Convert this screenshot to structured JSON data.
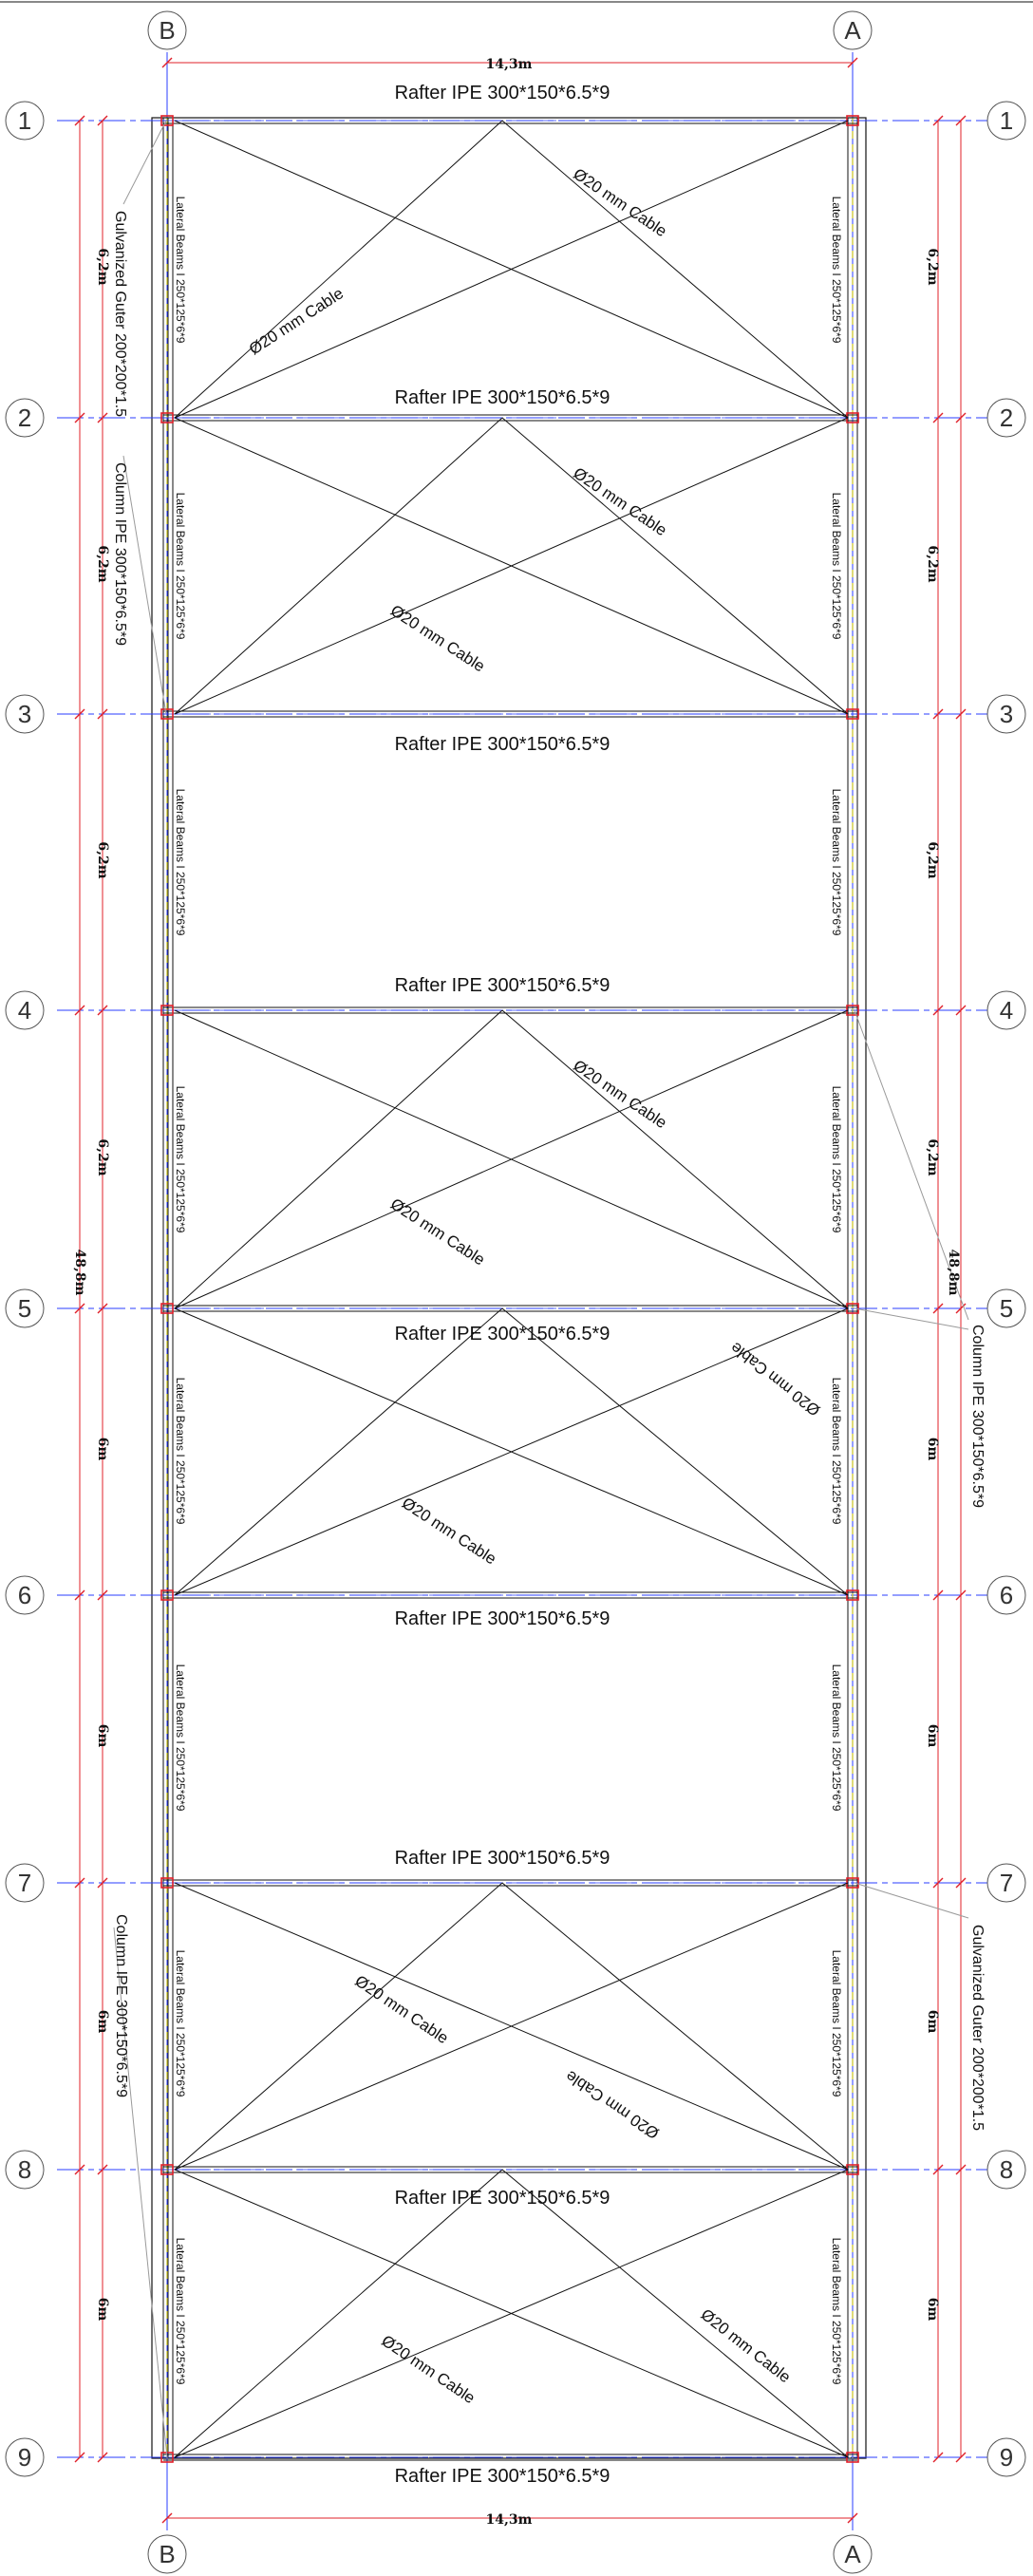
{
  "grid": {
    "columns": [
      "B",
      "A"
    ],
    "rows": [
      "1",
      "2",
      "3",
      "4",
      "5",
      "6",
      "7",
      "8",
      "9"
    ]
  },
  "dimensions": {
    "width": "14,3m",
    "total_length": "48,8m",
    "bays": [
      "6,2m",
      "6,2m",
      "6,2m",
      "6,2m",
      "6m",
      "6m",
      "6m",
      "6m"
    ]
  },
  "rafters": [
    "Rafter IPE 300*150*6.5*9",
    "Rafter IPE 300*150*6.5*9",
    "Rafter IPE 300*150*6.5*9",
    "Rafter IPE 300*150*6.5*9",
    "Rafter IPE 300*150*6.5*9",
    "Rafter IPE 300*150*6.5*9",
    "Rafter IPE 300*150*6.5*9",
    "Rafter IPE 300*150*6.5*9",
    "Rafter IPE 300*150*6.5*9"
  ],
  "lateral_beam": "Lateral Beams I 250*125*6*9",
  "cable": "Ø20 mm Cable",
  "callouts": {
    "gutter_left": "Gulvanized Guter 200*200*1.5",
    "column_left_top": "Column IPE 300*150*6.5*9",
    "column_right": "Column IPE 300*150*6.5*9",
    "gutter_right": "Gulvanized Guter 200*200*1.5",
    "column_left_bottom": "Column IPE 300*150*6.5*9"
  },
  "colors": {
    "frame": "#111111",
    "grid_axis": "#2a3cff",
    "dimension": "#e0202a",
    "bubble": "#555555",
    "leader": "#9a9a9a",
    "lateral_dash": "#c8c020"
  }
}
